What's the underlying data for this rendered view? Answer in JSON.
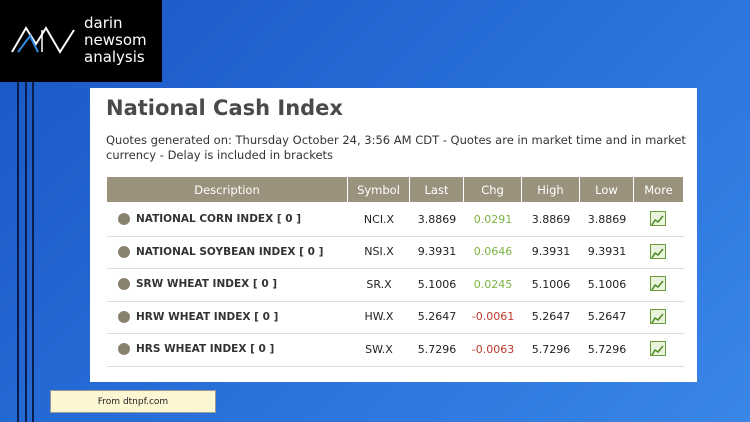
{
  "logo": {
    "lines": [
      "darin",
      "newsom",
      "analysis"
    ]
  },
  "panel": {
    "title": "National Cash Index",
    "subtitle": "Quotes generated on: Thursday October 24, 3:56 AM CDT - Quotes are in market time and in market currency - Delay is included in brackets",
    "table": {
      "header": [
        "Description",
        "Symbol",
        "Last",
        "Chg",
        "High",
        "Low",
        "More"
      ],
      "rows": [
        [
          "NATIONAL CORN INDEX [ 0 ]",
          "NCI.X",
          "3.8869",
          "0.0291",
          "3.8869",
          "3.8869"
        ],
        [
          "NATIONAL SOYBEAN INDEX [ 0 ]",
          "NSI.X",
          "9.3931",
          "0.0646",
          "9.3931",
          "9.3931"
        ],
        [
          "SRW WHEAT INDEX [ 0 ]",
          "SR.X",
          "5.1006",
          "0.0245",
          "5.1006",
          "5.1006"
        ],
        [
          "HRW WHEAT INDEX [ 0 ]",
          "HW.X",
          "5.2647",
          "-0.0061",
          "5.2647",
          "5.2647"
        ],
        [
          "HRS WHEAT INDEX [ 0 ]",
          "SW.X",
          "5.7296",
          "-0.0063",
          "5.7296",
          "5.7296"
        ]
      ]
    }
  },
  "note": "From dtnpf.com"
}
